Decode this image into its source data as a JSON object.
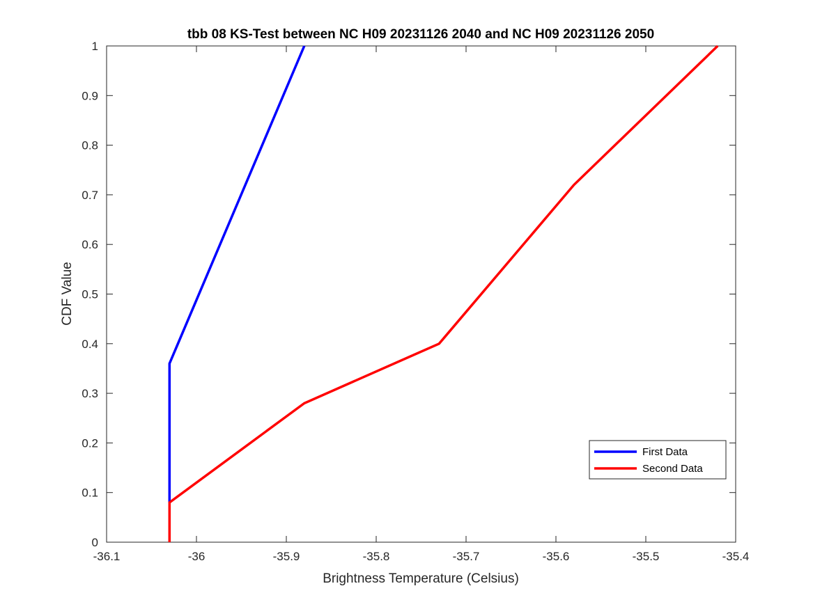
{
  "chart_data": {
    "type": "line",
    "title": "tbb 08 KS-Test between NC H09 20231126 2040 and NC H09 20231126 2050",
    "xlabel": "Brightness Temperature (Celsius)",
    "ylabel": "CDF Value",
    "xlim": [
      -36.1,
      -35.4
    ],
    "ylim": [
      0,
      1
    ],
    "xticks": [
      -36.1,
      -36,
      -35.9,
      -35.8,
      -35.7,
      -35.6,
      -35.5,
      -35.4
    ],
    "xtick_labels": [
      "-36.1",
      "-36",
      "-35.9",
      "-35.8",
      "-35.7",
      "-35.6",
      "-35.5",
      "-35.4"
    ],
    "yticks": [
      0,
      0.1,
      0.2,
      0.3,
      0.4,
      0.5,
      0.6,
      0.7,
      0.8,
      0.9,
      1
    ],
    "ytick_labels": [
      "0",
      "0.1",
      "0.2",
      "0.3",
      "0.4",
      "0.5",
      "0.6",
      "0.7",
      "0.8",
      "0.9",
      "1"
    ],
    "grid": false,
    "legend_position": "bottom-right",
    "series": [
      {
        "name": "First Data",
        "color": "#0000ff",
        "x": [
          -36.03,
          -36.03,
          -35.88
        ],
        "y": [
          0.08,
          0.36,
          1.0
        ]
      },
      {
        "name": "Second Data",
        "color": "#ff0000",
        "x": [
          -36.03,
          -36.03,
          -35.88,
          -35.73,
          -35.58,
          -35.42
        ],
        "y": [
          0.0,
          0.08,
          0.28,
          0.4,
          0.72,
          1.0
        ]
      }
    ]
  }
}
